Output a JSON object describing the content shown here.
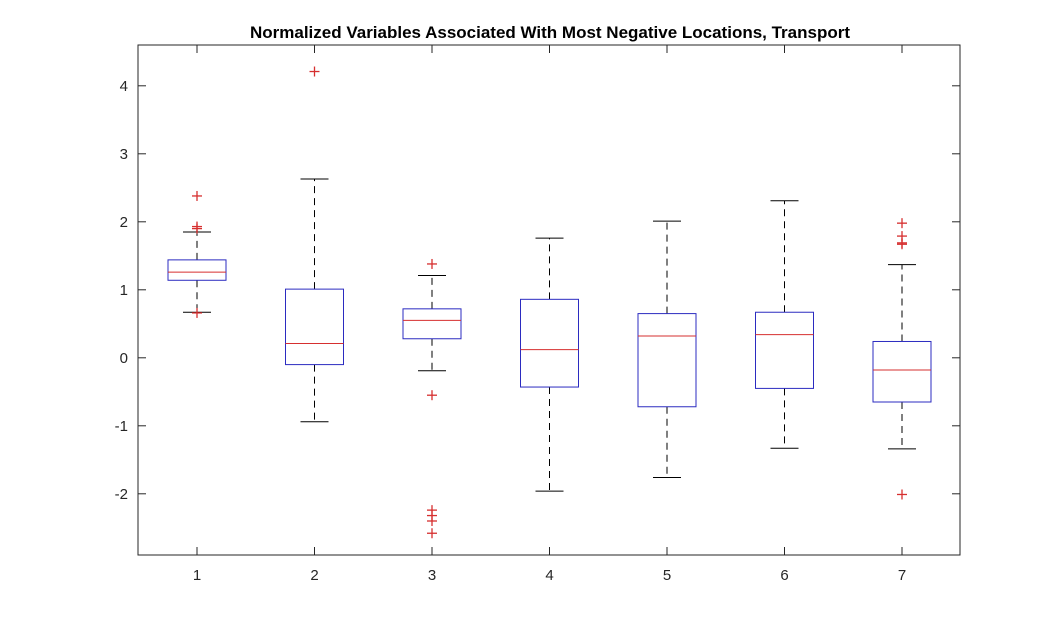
{
  "chart_data": {
    "type": "boxplot",
    "title": "Normalized Variables Associated With Most Negative Locations, Transport",
    "xlabel": "",
    "ylabel": "",
    "ylim": [
      -2.9,
      4.6
    ],
    "yticks": [
      -2,
      -1,
      0,
      1,
      2,
      3,
      4
    ],
    "ytick_labels": [
      "-2",
      "-1",
      "0",
      "1",
      "2",
      "3",
      "4"
    ],
    "categories": [
      "1",
      "2",
      "3",
      "4",
      "5",
      "6",
      "7"
    ],
    "grid": false,
    "boxes": [
      {
        "label": "1",
        "whisker_low": 0.67,
        "q1": 1.14,
        "median": 1.26,
        "q3": 1.44,
        "whisker_high": 1.85,
        "outliers": [
          0.66,
          1.9,
          1.93,
          2.38
        ]
      },
      {
        "label": "2",
        "whisker_low": -0.94,
        "q1": -0.1,
        "median": 0.21,
        "q3": 1.01,
        "whisker_high": 2.63,
        "outliers": [
          4.21
        ]
      },
      {
        "label": "3",
        "whisker_low": -0.19,
        "q1": 0.28,
        "median": 0.55,
        "q3": 0.72,
        "whisker_high": 1.21,
        "outliers": [
          1.38,
          -0.55,
          -2.24,
          -2.32,
          -2.4,
          -2.58
        ]
      },
      {
        "label": "4",
        "whisker_low": -1.96,
        "q1": -0.43,
        "median": 0.12,
        "q3": 0.86,
        "whisker_high": 1.76,
        "outliers": []
      },
      {
        "label": "5",
        "whisker_low": -1.76,
        "q1": -0.72,
        "median": 0.32,
        "q3": 0.65,
        "whisker_high": 2.01,
        "outliers": []
      },
      {
        "label": "6",
        "whisker_low": -1.33,
        "q1": -0.45,
        "median": 0.34,
        "q3": 0.67,
        "whisker_high": 2.31,
        "outliers": []
      },
      {
        "label": "7",
        "whisker_low": -1.34,
        "q1": -0.65,
        "median": -0.18,
        "q3": 0.24,
        "whisker_high": 1.37,
        "outliers": [
          1.67,
          1.69,
          1.79,
          1.98,
          -2.01
        ]
      }
    ],
    "colors": {
      "box": "#2b2bc0",
      "median": "#d62f2f",
      "whisker": "#000000",
      "outlier": "#d62f2f",
      "axis": "#262626",
      "text": "#262626"
    }
  }
}
